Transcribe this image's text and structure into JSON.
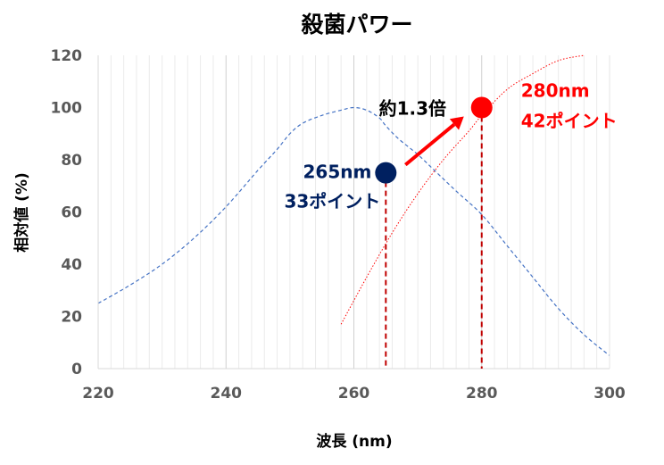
{
  "chart_data": {
    "type": "line",
    "title": "殺菌パワー",
    "xlabel": "波長 (nm)",
    "ylabel": "相対値 (%)",
    "xlim": [
      220,
      300
    ],
    "ylim": [
      0,
      120
    ],
    "xticks": [
      "220",
      "240",
      "260",
      "280",
      "300"
    ],
    "yticks": [
      "0",
      "20",
      "40",
      "60",
      "80",
      "100",
      "120"
    ],
    "grid": "vertical-minor",
    "series": [
      {
        "color": "#4472C4",
        "style": "dashed",
        "x": [
          220,
          225,
          230,
          235,
          240,
          245,
          248,
          250,
          252,
          255,
          258,
          260,
          262,
          264,
          265,
          267,
          270,
          273,
          276,
          280,
          284,
          288,
          292,
          296,
          300
        ],
        "y": [
          25,
          32,
          40,
          50,
          62,
          76,
          84,
          90,
          94,
          97,
          99,
          100,
          99,
          96,
          93,
          88,
          82,
          75,
          68,
          59,
          47,
          35,
          23,
          13,
          5
        ]
      },
      {
        "color": "#FF0000",
        "style": "dotted",
        "x": [
          258,
          262,
          266,
          270,
          274,
          278,
          280,
          284,
          288,
          292,
          296
        ],
        "y": [
          17,
          35,
          52,
          67,
          80,
          91,
          97,
          107,
          113,
          118,
          120
        ]
      }
    ],
    "points": [
      {
        "x": 265,
        "y": 75,
        "color": "#002060",
        "label_nm": "265nm",
        "label_pts": "33ポイント"
      },
      {
        "x": 280,
        "y": 100,
        "color": "#FF0000",
        "label_nm": "280nm",
        "label_pts": "42ポイント"
      }
    ],
    "arrow": {
      "color": "#FF0000",
      "label": "約1.3倍"
    }
  }
}
